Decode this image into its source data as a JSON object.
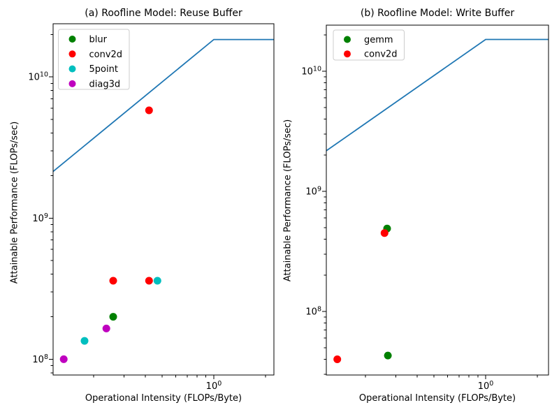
{
  "figure": {
    "background": "#ffffff",
    "axes_color": "#000000",
    "roofline_color": "#1f77b4"
  },
  "chart_data": [
    {
      "type": "scatter",
      "title": "(a) Roofline Model: Reuse Buffer",
      "xlabel": "Operational Intensity (FLOPs/Byte)",
      "ylabel": "Attainable Performance (FLOPs/sec)",
      "xscale": "log",
      "yscale": "log",
      "xlim": [
        0.1162,
        2.237
      ],
      "ylim": [
        77300000.0,
        23810000000.0
      ],
      "grid": false,
      "legend_position": "upper left",
      "x_ticks": [
        {
          "value": 1,
          "base": "10",
          "exp": "0"
        }
      ],
      "y_ticks": [
        {
          "value": 100000000.0,
          "base": "10",
          "exp": "8"
        },
        {
          "value": 1000000000.0,
          "base": "10",
          "exp": "9"
        },
        {
          "value": 10000000000.0,
          "base": "10",
          "exp": "10"
        }
      ],
      "roofline": {
        "bandwidth": 18400000000.0,
        "peak": 18400000000.0,
        "ridge_x": 1.0,
        "color": "#1f77b4"
      },
      "series": [
        {
          "name": "blur",
          "color": "#008000",
          "points": [
            [
              0.26,
              200000000.0
            ]
          ]
        },
        {
          "name": "conv2d",
          "color": "#ff0000",
          "points": [
            [
              0.42,
              5800000000.0
            ],
            [
              0.26,
              360000000.0
            ],
            [
              0.42,
              360000000.0
            ]
          ]
        },
        {
          "name": "5point",
          "color": "#00bfbf",
          "points": [
            [
              0.177,
              135000000.0
            ],
            [
              0.47,
              360000000.0
            ]
          ]
        },
        {
          "name": "diag3d",
          "color": "#bf00bf",
          "points": [
            [
              0.134,
              100000000.0
            ],
            [
              0.237,
              165000000.0
            ]
          ]
        }
      ]
    },
    {
      "type": "scatter",
      "title": "(b) Roofline Model: Write Buffer",
      "xlabel": "Operational Intensity (FLOPs/Byte)",
      "ylabel": "Attainable Performance (FLOPs/sec)",
      "xscale": "log",
      "yscale": "log",
      "xlim": [
        0.1183,
        2.322
      ],
      "ylim": [
        29580000.0,
        24200000000.0
      ],
      "grid": false,
      "legend_position": "upper left",
      "x_ticks": [
        {
          "value": 1,
          "base": "10",
          "exp": "0"
        }
      ],
      "y_ticks": [
        {
          "value": 100000000.0,
          "base": "10",
          "exp": "8"
        },
        {
          "value": 1000000000.0,
          "base": "10",
          "exp": "9"
        },
        {
          "value": 10000000000.0,
          "base": "10",
          "exp": "10"
        }
      ],
      "roofline": {
        "bandwidth": 18400000000.0,
        "peak": 18400000000.0,
        "ridge_x": 1.0,
        "color": "#1f77b4"
      },
      "series": [
        {
          "name": "gemm",
          "color": "#008000",
          "points": [
            [
              0.267,
              490000000.0
            ],
            [
              0.27,
              43000000.0
            ]
          ]
        },
        {
          "name": "conv2d",
          "color": "#ff0000",
          "points": [
            [
              0.258,
              450000000.0
            ],
            [
              0.137,
              40000000.0
            ]
          ]
        }
      ]
    }
  ]
}
